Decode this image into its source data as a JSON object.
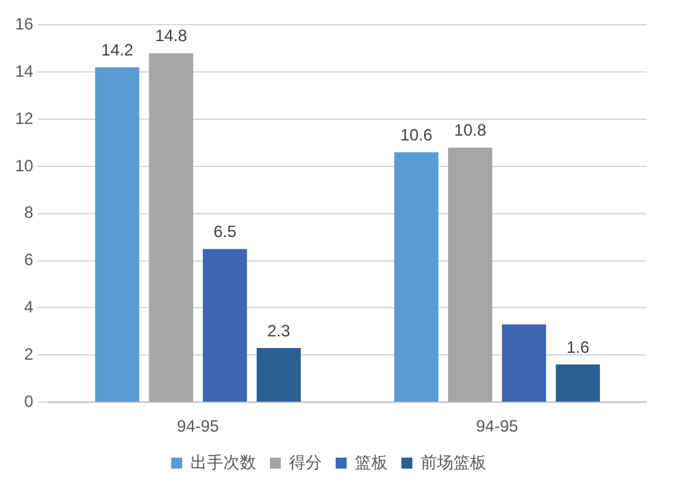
{
  "chart_data": {
    "type": "bar",
    "categories": [
      "94-95",
      "94-95"
    ],
    "series": [
      {
        "name": "出手次数",
        "color": "#5b9bd5",
        "values": [
          14.2,
          10.6
        ],
        "value_labels": [
          "14.2",
          "10.6"
        ]
      },
      {
        "name": "得分",
        "color": "#a5a5a5",
        "values": [
          14.8,
          10.8
        ],
        "value_labels": [
          "14.8",
          "10.8"
        ]
      },
      {
        "name": "篮板",
        "color": "#3f66b0",
        "values": [
          6.5,
          3.3
        ],
        "value_labels": [
          "6.5",
          null
        ]
      },
      {
        "name": "前场篮板",
        "color": "#2a5f94",
        "values": [
          2.3,
          1.6
        ],
        "value_labels": [
          "2.3",
          "1.6"
        ]
      }
    ],
    "ylim": [
      0,
      16
    ],
    "yticks": [
      0,
      2,
      4,
      6,
      8,
      10,
      12,
      14,
      16
    ],
    "grid": "y",
    "legend": "bottom"
  }
}
